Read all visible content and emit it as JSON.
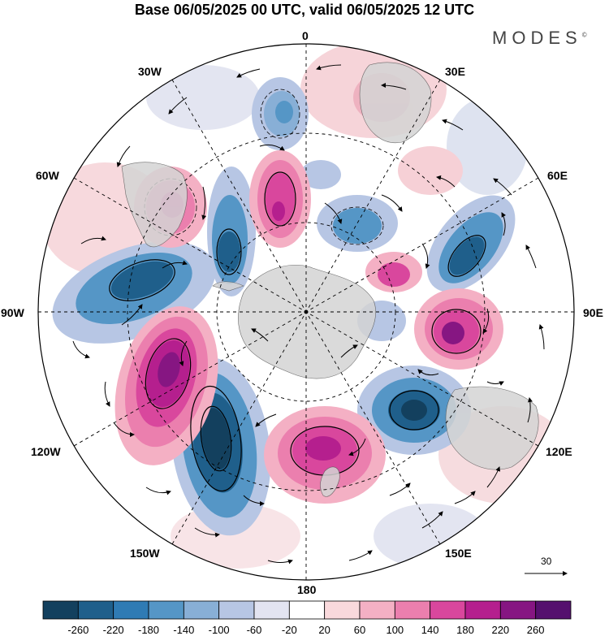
{
  "title": "Base 06/05/2025 00 UTC, valid 06/05/2025 12 UTC",
  "brand": {
    "name": "MODES",
    "mark": "©"
  },
  "longitude_labels": {
    "lon_0": "0",
    "lon_30e": "30E",
    "lon_60e": "60E",
    "lon_90e": "90E",
    "lon_120e": "120E",
    "lon_150e": "150E",
    "lon_180": "180",
    "lon_150w": "150W",
    "lon_120w": "120W",
    "lon_90w": "90W",
    "lon_60w": "60W",
    "lon_30w": "30W"
  },
  "reference_vector": {
    "label": "30"
  },
  "colorbar": {
    "colors": [
      "#13405e",
      "#1f5f8b",
      "#2f7bb4",
      "#5596c6",
      "#88afd6",
      "#b7c6e4",
      "#e3e4f1",
      "#ffffff",
      "#f9d9dc",
      "#f4b0c4",
      "#eb7fae",
      "#d9479d",
      "#b51f8e",
      "#861682",
      "#55106e"
    ],
    "labels": [
      "-260",
      "-220",
      "-180",
      "-140",
      "-100",
      "-60",
      "-20",
      "20",
      "60",
      "100",
      "140",
      "180",
      "220",
      "260"
    ]
  },
  "colors": {
    "negative_strong": "#1f5f8b",
    "negative_weak": "#b7c6e4",
    "positive_weak": "#f4b0c4",
    "positive_strong": "#b51f8e",
    "land": "#cfcfcf"
  }
}
